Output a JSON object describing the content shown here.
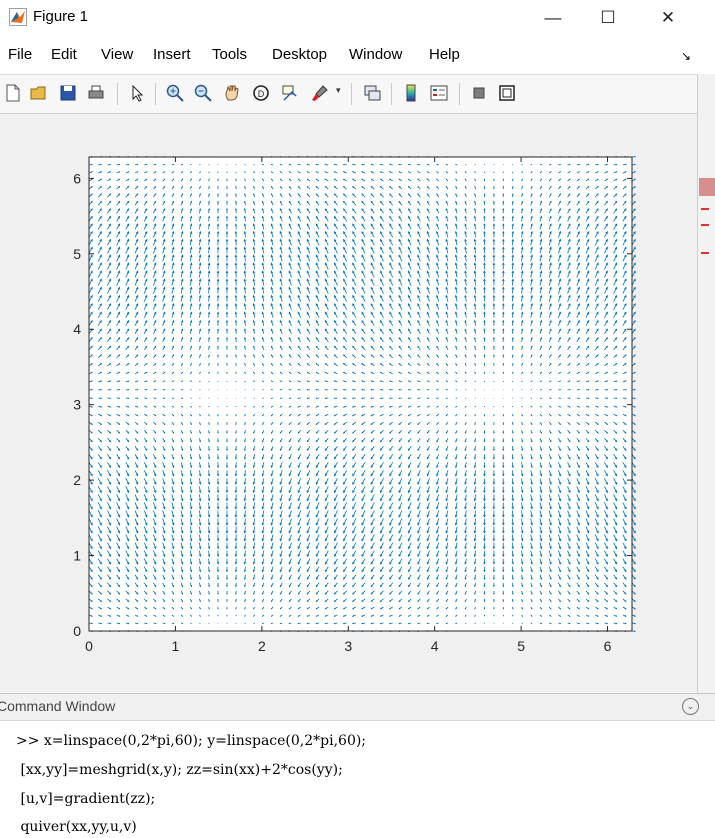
{
  "window": {
    "title": "Figure 1",
    "minimize_label": "—",
    "maximize_label": "☐",
    "close_label": "✕"
  },
  "menu": {
    "items": [
      "File",
      "Edit",
      "View",
      "Insert",
      "Tools",
      "Desktop",
      "Window",
      "Help"
    ],
    "dock_arrow": "↘"
  },
  "toolbar": {
    "icons": [
      "new-figure-icon",
      "open-file-icon",
      "save-icon",
      "print-icon",
      "pointer-icon",
      "zoom-in-icon",
      "zoom-out-icon",
      "pan-icon",
      "rotate-3d-icon",
      "data-cursor-icon",
      "brush-icon",
      "brush-dropdown-icon",
      "link-plot-icon",
      "colorbar-icon",
      "legend-icon",
      "hide-plot-tools-icon",
      "show-plot-tools-icon"
    ]
  },
  "colors": {
    "quiver": "#0072BD",
    "axes": "#262626",
    "figure_bg": "#f0f0f0"
  },
  "chart_data": {
    "type": "quiver",
    "title": "",
    "xlabel": "",
    "ylabel": "",
    "xlim": [
      0,
      6.2832
    ],
    "ylim": [
      0,
      6.2832
    ],
    "xticks": [
      "0",
      "1",
      "2",
      "3",
      "4",
      "5",
      "6"
    ],
    "yticks": [
      "0",
      "1",
      "2",
      "3",
      "4",
      "5",
      "6"
    ],
    "grid": "off",
    "field": {
      "function": "zz=sin(xx)+2*cos(yy)",
      "x_points": 60,
      "y_points": 60
    }
  },
  "command_window": {
    "title": "Command Window",
    "collapse_icon": "⌄",
    "lines": [
      ">> x=linspace(0,2*pi,60); y=linspace(0,2*pi,60);",
      " [xx,yy]=meshgrid(x,y); zz=sin(xx)+2*cos(yy);",
      " [u,v]=gradient(zz);",
      " quiver(xx,yy,u,v)"
    ]
  }
}
